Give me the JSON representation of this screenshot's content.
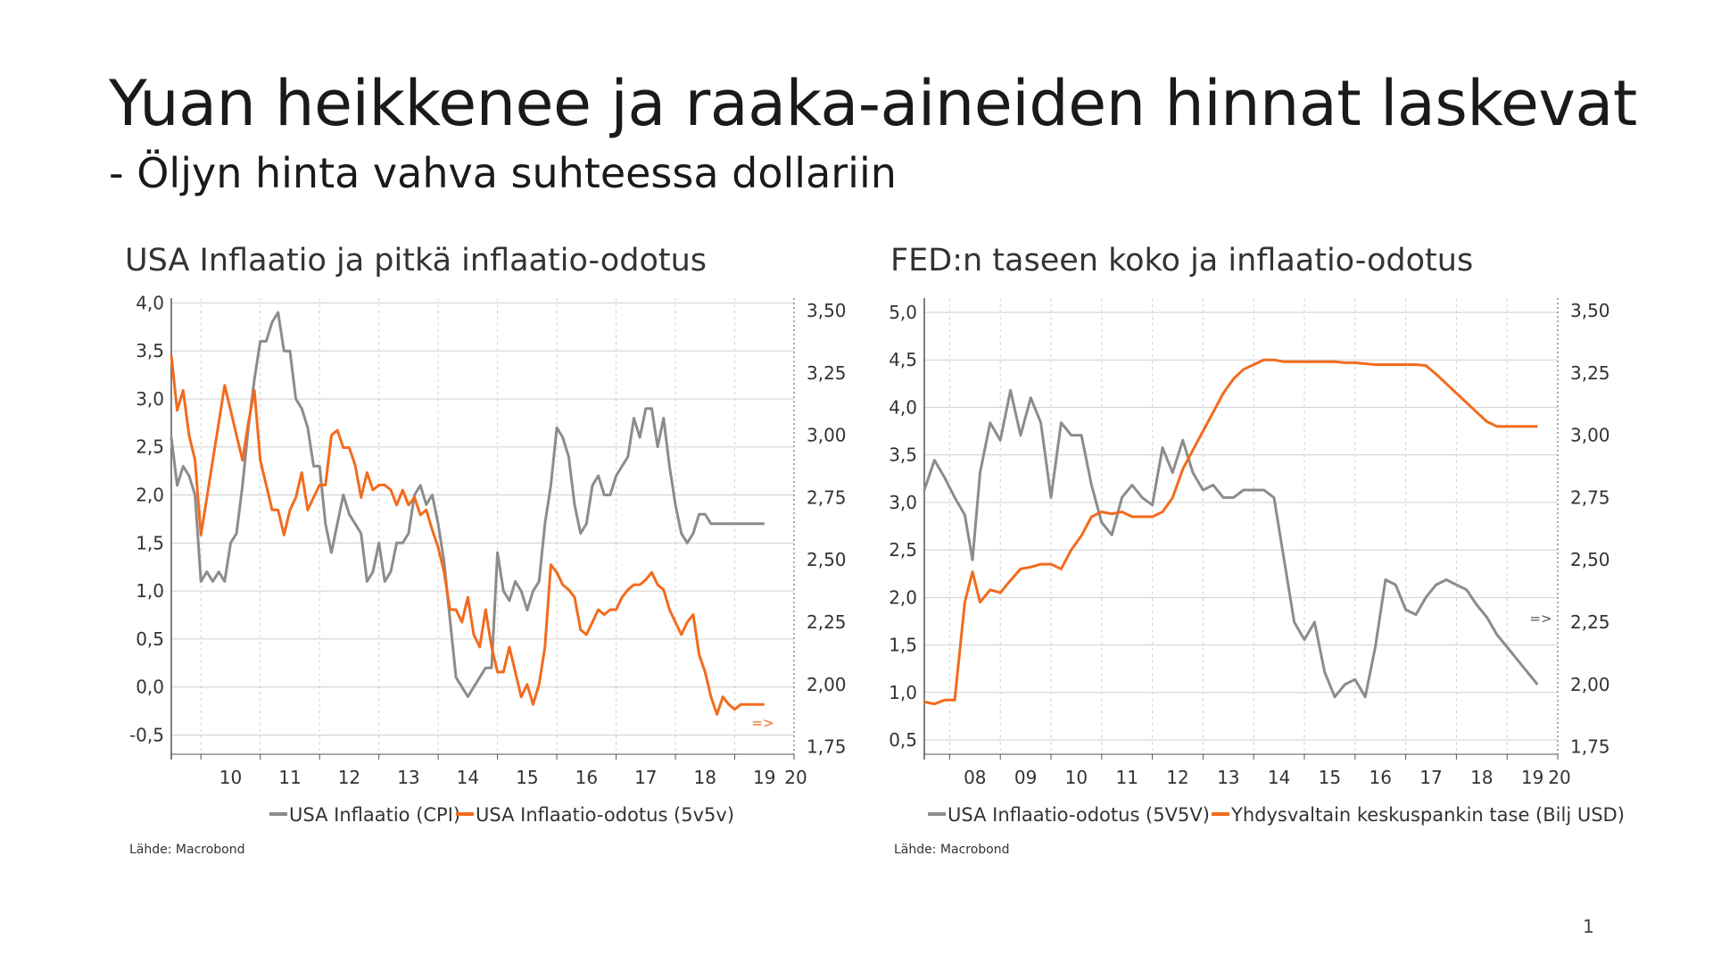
{
  "slide": {
    "title": "Yuan heikkenee ja raaka-aineiden hinnat laskevat",
    "subtitle": "- Öljyn hinta vahva suhteessa dollariin",
    "page_number": "1"
  },
  "colors": {
    "gray": "#8c8c8c",
    "orange": "#f26b1d",
    "grid": "#cfcfcf"
  },
  "chart_data": [
    {
      "type": "line",
      "title": "USA Inflaatio ja pitkä inflaatio-odotus",
      "source": "Lähde: Macrobond",
      "arrow_annotation": "=>",
      "x_range": [
        2009.5,
        2020.0
      ],
      "x_ticks": [
        "10",
        "11",
        "12",
        "13",
        "14",
        "15",
        "16",
        "17",
        "18",
        "19",
        "20"
      ],
      "y_left": {
        "range": [
          -0.7,
          4.05
        ],
        "ticks": [
          "4,0",
          "3,5",
          "3,0",
          "2,5",
          "2,0",
          "1,5",
          "1,0",
          "0,5",
          "0,0",
          "-0,5"
        ],
        "tick_values": [
          4.0,
          3.5,
          3.0,
          2.5,
          2.0,
          1.5,
          1.0,
          0.5,
          0.0,
          -0.5
        ]
      },
      "y_right": {
        "range": [
          1.72,
          3.55
        ],
        "ticks": [
          "3,50",
          "3,25",
          "3,00",
          "2,75",
          "2,50",
          "2,25",
          "2,00",
          "1,75"
        ],
        "tick_values": [
          3.5,
          3.25,
          3.0,
          2.75,
          2.5,
          2.25,
          2.0,
          1.75
        ]
      },
      "series": [
        {
          "name": "USA Inflaatio (CPI)",
          "axis": "left",
          "color": "#8c8c8c",
          "x": [
            2009.5,
            2009.6,
            2009.7,
            2009.8,
            2009.9,
            2010.0,
            2010.1,
            2010.2,
            2010.3,
            2010.4,
            2010.5,
            2010.6,
            2010.7,
            2010.8,
            2010.9,
            2011.0,
            2011.1,
            2011.2,
            2011.3,
            2011.4,
            2011.5,
            2011.6,
            2011.7,
            2011.8,
            2011.9,
            2012.0,
            2012.1,
            2012.2,
            2012.3,
            2012.4,
            2012.5,
            2012.6,
            2012.7,
            2012.8,
            2012.9,
            2013.0,
            2013.1,
            2013.2,
            2013.3,
            2013.4,
            2013.5,
            2013.6,
            2013.7,
            2013.8,
            2013.9,
            2014.0,
            2014.1,
            2014.2,
            2014.3,
            2014.4,
            2014.5,
            2014.6,
            2014.7,
            2014.8,
            2014.9,
            2015.0,
            2015.1,
            2015.2,
            2015.3,
            2015.4,
            2015.5,
            2015.6,
            2015.7,
            2015.8,
            2015.9,
            2016.0,
            2016.1,
            2016.2,
            2016.3,
            2016.4,
            2016.5,
            2016.6,
            2016.7,
            2016.8,
            2016.9,
            2017.0,
            2017.1,
            2017.2,
            2017.3,
            2017.4,
            2017.5,
            2017.6,
            2017.7,
            2017.8,
            2017.9,
            2018.0,
            2018.1,
            2018.2,
            2018.3,
            2018.4,
            2018.5,
            2018.6,
            2018.7,
            2018.8,
            2018.9,
            2019.0,
            2019.1,
            2019.2,
            2019.3,
            2019.4,
            2019.5
          ],
          "values": [
            2.6,
            2.1,
            2.3,
            2.2,
            2.0,
            1.1,
            1.2,
            1.1,
            1.2,
            1.1,
            1.5,
            1.6,
            2.1,
            2.7,
            3.2,
            3.6,
            3.6,
            3.8,
            3.9,
            3.5,
            3.5,
            3.0,
            2.9,
            2.7,
            2.3,
            2.3,
            1.7,
            1.4,
            1.7,
            2.0,
            1.8,
            1.7,
            1.6,
            1.1,
            1.2,
            1.5,
            1.1,
            1.2,
            1.5,
            1.5,
            1.6,
            2.0,
            2.1,
            1.9,
            2.0,
            1.7,
            1.3,
            0.7,
            0.1,
            0.0,
            -0.1,
            0.0,
            0.1,
            0.2,
            0.2,
            1.4,
            1.0,
            0.9,
            1.1,
            1.0,
            0.8,
            1.0,
            1.1,
            1.7,
            2.1,
            2.7,
            2.6,
            2.4,
            1.9,
            1.6,
            1.7,
            2.1,
            2.2,
            2.0,
            2.0,
            2.2,
            2.3,
            2.4,
            2.8,
            2.6,
            2.9,
            2.9,
            2.5,
            2.8,
            2.3,
            1.9,
            1.6,
            1.5,
            1.6,
            1.8,
            1.8,
            1.7,
            1.7,
            1.7,
            1.7,
            1.7,
            1.7,
            1.7,
            1.7,
            1.7,
            1.7
          ]
        },
        {
          "name": "USA Inflaatio-odotus (5v5v)",
          "axis": "right",
          "color": "#f26b1d",
          "x": [
            2009.5,
            2009.6,
            2009.7,
            2009.8,
            2009.9,
            2010.0,
            2010.1,
            2010.2,
            2010.3,
            2010.4,
            2010.5,
            2010.6,
            2010.7,
            2010.8,
            2010.9,
            2011.0,
            2011.1,
            2011.2,
            2011.3,
            2011.4,
            2011.5,
            2011.6,
            2011.7,
            2011.8,
            2011.9,
            2012.0,
            2012.1,
            2012.2,
            2012.3,
            2012.4,
            2012.5,
            2012.6,
            2012.7,
            2012.8,
            2012.9,
            2013.0,
            2013.1,
            2013.2,
            2013.3,
            2013.4,
            2013.5,
            2013.6,
            2013.7,
            2013.8,
            2013.9,
            2014.0,
            2014.1,
            2014.2,
            2014.3,
            2014.4,
            2014.5,
            2014.6,
            2014.7,
            2014.8,
            2014.9,
            2015.0,
            2015.1,
            2015.2,
            2015.3,
            2015.4,
            2015.5,
            2015.6,
            2015.7,
            2015.8,
            2015.9,
            2016.0,
            2016.1,
            2016.2,
            2016.3,
            2016.4,
            2016.5,
            2016.6,
            2016.7,
            2016.8,
            2016.9,
            2017.0,
            2017.1,
            2017.2,
            2017.3,
            2017.4,
            2017.5,
            2017.6,
            2017.7,
            2017.8,
            2017.9,
            2018.0,
            2018.1,
            2018.2,
            2018.3,
            2018.4,
            2018.5,
            2018.6,
            2018.7,
            2018.8,
            2018.9,
            2019.0,
            2019.1,
            2019.2,
            2019.3,
            2019.4,
            2019.5
          ],
          "values": [
            3.32,
            3.1,
            3.18,
            3.0,
            2.9,
            2.6,
            2.75,
            2.9,
            3.05,
            3.2,
            3.1,
            3.0,
            2.9,
            3.05,
            3.18,
            2.9,
            2.8,
            2.7,
            2.7,
            2.6,
            2.7,
            2.75,
            2.85,
            2.7,
            2.75,
            2.8,
            2.8,
            3.0,
            3.02,
            2.95,
            2.95,
            2.88,
            2.75,
            2.85,
            2.78,
            2.8,
            2.8,
            2.78,
            2.72,
            2.78,
            2.72,
            2.75,
            2.68,
            2.7,
            2.62,
            2.55,
            2.45,
            2.3,
            2.3,
            2.25,
            2.35,
            2.2,
            2.15,
            2.3,
            2.15,
            2.05,
            2.05,
            2.15,
            2.05,
            1.95,
            2.0,
            1.92,
            2.0,
            2.15,
            2.48,
            2.45,
            2.4,
            2.38,
            2.35,
            2.22,
            2.2,
            2.25,
            2.3,
            2.28,
            2.3,
            2.3,
            2.35,
            2.38,
            2.4,
            2.4,
            2.42,
            2.45,
            2.4,
            2.38,
            2.3,
            2.25,
            2.2,
            2.25,
            2.28,
            2.12,
            2.05,
            1.95,
            1.88,
            1.95,
            1.92,
            1.9,
            1.92,
            1.92,
            1.92,
            1.92,
            1.92
          ]
        }
      ]
    },
    {
      "type": "line",
      "title": "FED:n taseen koko ja inflaatio-odotus",
      "source": "Lähde: Macrobond",
      "arrow_annotation": "=>",
      "x_range": [
        2007.5,
        2020.0
      ],
      "x_ticks": [
        "08",
        "09",
        "10",
        "11",
        "12",
        "13",
        "14",
        "15",
        "16",
        "17",
        "18",
        "19",
        "20"
      ],
      "y_left": {
        "range": [
          0.35,
          5.15
        ],
        "ticks": [
          "5,0",
          "4,5",
          "4,0",
          "3,5",
          "3,0",
          "2,5",
          "2,0",
          "1,5",
          "1,0",
          "0,5"
        ],
        "tick_values": [
          5.0,
          4.5,
          4.0,
          3.5,
          3.0,
          2.5,
          2.0,
          1.5,
          1.0,
          0.5
        ]
      },
      "y_right": {
        "range": [
          1.72,
          3.55
        ],
        "ticks": [
          "3,50",
          "3,25",
          "3,00",
          "2,75",
          "2,50",
          "2,25",
          "2,00",
          "1,75"
        ],
        "tick_values": [
          3.5,
          3.25,
          3.0,
          2.75,
          2.5,
          2.25,
          2.0,
          1.75
        ]
      },
      "series": [
        {
          "name": "USA Inflaatio-odotus (5V5V)",
          "axis": "right",
          "color": "#8c8c8c",
          "x": [
            2007.5,
            2007.7,
            2007.9,
            2008.1,
            2008.3,
            2008.45,
            2008.6,
            2008.8,
            2009.0,
            2009.2,
            2009.4,
            2009.6,
            2009.8,
            2010.0,
            2010.2,
            2010.4,
            2010.6,
            2010.8,
            2011.0,
            2011.2,
            2011.4,
            2011.6,
            2011.8,
            2012.0,
            2012.2,
            2012.4,
            2012.6,
            2012.8,
            2013.0,
            2013.2,
            2013.4,
            2013.6,
            2013.8,
            2014.0,
            2014.2,
            2014.4,
            2014.6,
            2014.8,
            2015.0,
            2015.2,
            2015.4,
            2015.6,
            2015.8,
            2016.0,
            2016.2,
            2016.4,
            2016.6,
            2016.8,
            2017.0,
            2017.2,
            2017.4,
            2017.6,
            2017.8,
            2018.0,
            2018.2,
            2018.4,
            2018.6,
            2018.8,
            2019.0,
            2019.2,
            2019.4,
            2019.6
          ],
          "values": [
            2.78,
            2.9,
            2.83,
            2.75,
            2.68,
            2.5,
            2.85,
            3.05,
            2.98,
            3.18,
            3.0,
            3.15,
            3.05,
            2.75,
            3.05,
            3.0,
            3.0,
            2.8,
            2.65,
            2.6,
            2.75,
            2.8,
            2.75,
            2.72,
            2.95,
            2.85,
            2.98,
            2.85,
            2.78,
            2.8,
            2.75,
            2.75,
            2.78,
            2.78,
            2.78,
            2.75,
            2.5,
            2.25,
            2.18,
            2.25,
            2.05,
            1.95,
            2.0,
            2.02,
            1.95,
            2.15,
            2.42,
            2.4,
            2.3,
            2.28,
            2.35,
            2.4,
            2.42,
            2.4,
            2.38,
            2.32,
            2.27,
            2.2,
            2.15,
            2.1,
            2.05,
            2.0
          ]
        },
        {
          "name": "Yhdysvaltain keskuspankin tase (Bilj USD)",
          "axis": "left",
          "color": "#f26b1d",
          "x": [
            2007.5,
            2007.7,
            2007.9,
            2008.1,
            2008.3,
            2008.45,
            2008.6,
            2008.8,
            2009.0,
            2009.2,
            2009.4,
            2009.6,
            2009.8,
            2010.0,
            2010.2,
            2010.4,
            2010.6,
            2010.8,
            2011.0,
            2011.2,
            2011.4,
            2011.6,
            2011.8,
            2012.0,
            2012.2,
            2012.4,
            2012.6,
            2012.8,
            2013.0,
            2013.2,
            2013.4,
            2013.6,
            2013.8,
            2014.0,
            2014.2,
            2014.4,
            2014.6,
            2014.8,
            2015.0,
            2015.2,
            2015.4,
            2015.6,
            2015.8,
            2016.0,
            2016.2,
            2016.4,
            2016.6,
            2016.8,
            2017.0,
            2017.2,
            2017.4,
            2017.6,
            2017.8,
            2018.0,
            2018.2,
            2018.4,
            2018.6,
            2018.8,
            2019.0,
            2019.2,
            2019.4,
            2019.6
          ],
          "values": [
            0.9,
            0.88,
            0.92,
            0.92,
            1.95,
            2.27,
            1.95,
            2.08,
            2.05,
            2.18,
            2.3,
            2.32,
            2.35,
            2.35,
            2.3,
            2.5,
            2.65,
            2.85,
            2.9,
            2.88,
            2.9,
            2.85,
            2.85,
            2.85,
            2.9,
            3.05,
            3.35,
            3.55,
            3.75,
            3.95,
            4.15,
            4.3,
            4.4,
            4.45,
            4.5,
            4.5,
            4.48,
            4.48,
            4.48,
            4.48,
            4.48,
            4.48,
            4.47,
            4.47,
            4.46,
            4.45,
            4.45,
            4.45,
            4.45,
            4.45,
            4.44,
            4.35,
            4.25,
            4.15,
            4.05,
            3.95,
            3.85,
            3.8,
            3.8,
            3.8,
            3.8,
            3.8
          ]
        }
      ]
    }
  ]
}
